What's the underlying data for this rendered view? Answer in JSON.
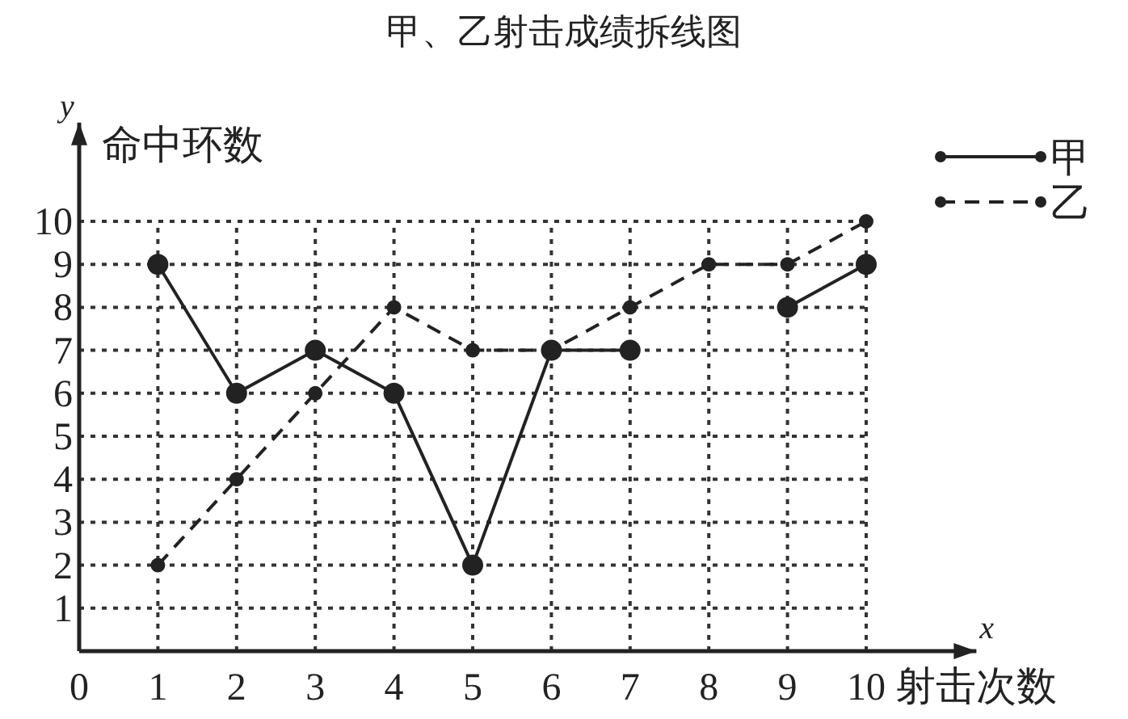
{
  "chart_data": {
    "type": "line",
    "title": "甲、乙射击成绩拆线图",
    "xlabel": "射击次数",
    "ylabel": "命中环数",
    "annotations": [
      "x",
      "y"
    ],
    "x": [
      1,
      2,
      3,
      4,
      5,
      6,
      7,
      8,
      9,
      10
    ],
    "series": [
      {
        "name": "甲",
        "color": "#222222",
        "line_style": "solid",
        "values": [
          9,
          6,
          7,
          6,
          2,
          7,
          7,
          null,
          8,
          9
        ]
      },
      {
        "name": "乙",
        "color": "#222222",
        "line_style": "dashed",
        "values": [
          2,
          4,
          6,
          8,
          7,
          7,
          8,
          9,
          9,
          10
        ]
      }
    ],
    "xlim": [
      0,
      11.4
    ],
    "ylim": [
      0,
      12.3
    ],
    "xticks": [
      0,
      1,
      2,
      3,
      4,
      5,
      6,
      7,
      8,
      9,
      10
    ],
    "yticks": [
      1,
      2,
      3,
      4,
      5,
      6,
      7,
      8,
      9,
      10
    ],
    "grid": true,
    "marker": "circle",
    "legend": "top right"
  }
}
